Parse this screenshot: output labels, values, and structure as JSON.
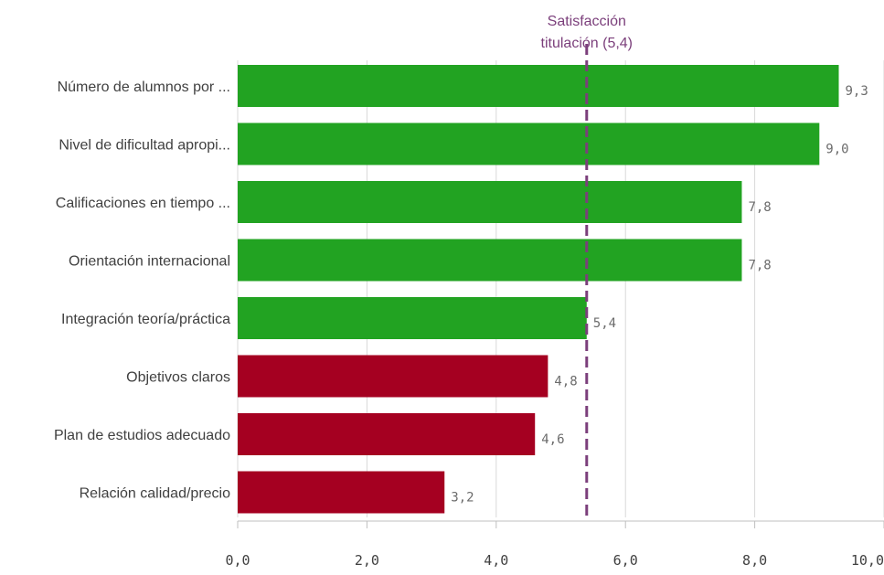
{
  "chart_data": {
    "type": "bar",
    "orientation": "horizontal",
    "categories": [
      "Número de alumnos por ...",
      "Nivel de dificultad apropi...",
      "Calificaciones en tiempo ...",
      "Orientación internacional",
      "Integración teoría/práctica",
      "Objetivos claros",
      "Plan de estudios adecuado",
      "Relación calidad/precio"
    ],
    "values": [
      9.3,
      9.0,
      7.8,
      7.8,
      5.4,
      4.8,
      4.6,
      3.2
    ],
    "value_labels": [
      "9,3",
      "9,0",
      "7,8",
      "7,8",
      "5,4",
      "4,8",
      "4,6",
      "3,2"
    ],
    "xlim": [
      0,
      10
    ],
    "x_ticks": [
      0,
      2,
      4,
      6,
      8,
      10
    ],
    "x_tick_labels": [
      "0,0",
      "2,0",
      "4,0",
      "6,0",
      "8,0",
      "10,0"
    ],
    "grid": true,
    "reference_line": {
      "value": 5.4,
      "label_lines": [
        "Satisfacción",
        "titulación (5,4)"
      ],
      "color": "#7b3f7b",
      "style": "dashed"
    },
    "colors": {
      "above_reference": "#22a322",
      "below_reference": "#a50021"
    }
  }
}
